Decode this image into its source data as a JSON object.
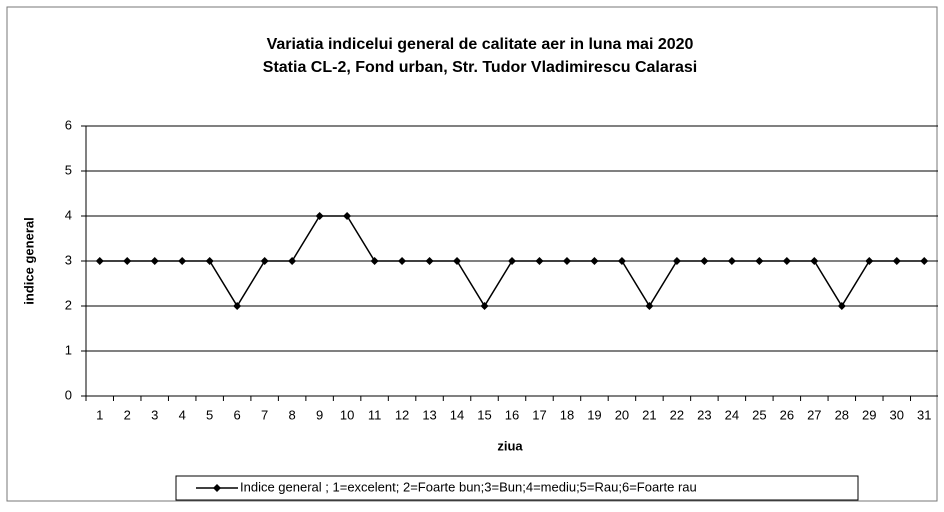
{
  "chart_data": {
    "type": "line",
    "title": "Variatia indicelui general de calitate aer in luna mai 2020",
    "subtitle": "Statia CL-2, Fond urban,  Str. Tudor Vladimirescu Calarasi",
    "x_label": "ziua",
    "y_label": "indice general",
    "categories": [
      "1",
      "2",
      "3",
      "4",
      "5",
      "6",
      "7",
      "8",
      "9",
      "10",
      "11",
      "12",
      "13",
      "14",
      "15",
      "16",
      "17",
      "18",
      "19",
      "20",
      "21",
      "22",
      "23",
      "24",
      "25",
      "26",
      "27",
      "28",
      "29",
      "30",
      "31"
    ],
    "series": [
      {
        "name": "Indice  general ; 1=excelent; 2=Foarte bun;3=Bun;4=mediu;5=Rau;6=Foarte rau",
        "color": "#000000",
        "values": [
          3,
          3,
          3,
          3,
          3,
          2,
          3,
          3,
          4,
          4,
          3,
          3,
          3,
          3,
          2,
          3,
          3,
          3,
          3,
          3,
          2,
          3,
          3,
          3,
          3,
          3,
          3,
          2,
          3,
          3,
          3
        ]
      }
    ],
    "ylim": [
      0,
      6
    ],
    "yticks": [
      0,
      1,
      2,
      3,
      4,
      5,
      6
    ],
    "grid": true,
    "legend": "bottom"
  }
}
